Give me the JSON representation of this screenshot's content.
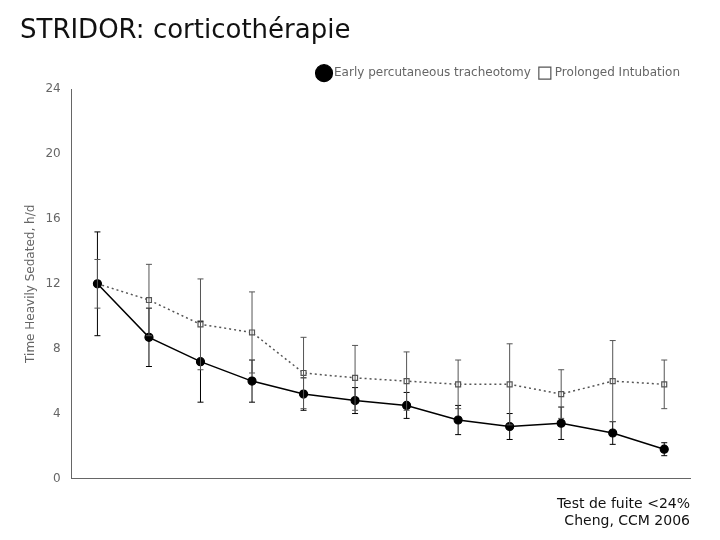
{
  "chart_data": {
    "type": "line",
    "title": "STRIDOR: corticothérapie",
    "subtitle": "Test de fuite <24%\nCheng, CCM 2006",
    "ylabel": "Time Heavily Sedated, h/d",
    "x": [
      1,
      2,
      3,
      4,
      5,
      6,
      7,
      8,
      9,
      10,
      11,
      12
    ],
    "xlim": [
      0.5,
      12.5
    ],
    "ylim": [
      0,
      24
    ],
    "yticks": [
      0,
      4,
      8,
      12,
      16,
      20,
      24
    ],
    "tick_labels": "y",
    "grid": false,
    "legend": "upper right",
    "series": [
      {
        "name": "Early percutaneous tracheotomy",
        "color": "#000000",
        "marker": "circle",
        "line_style": "solid",
        "values": [
          12.0,
          8.7,
          7.2,
          6.0,
          5.2,
          4.8,
          4.5,
          3.6,
          3.2,
          3.4,
          2.8,
          1.8
        ],
        "error_low": [
          3.2,
          1.8,
          2.5,
          1.3,
          1.0,
          0.8,
          0.8,
          0.9,
          0.8,
          1.0,
          0.7,
          0.4
        ],
        "error_high": [
          3.2,
          1.8,
          2.5,
          1.3,
          1.0,
          0.8,
          0.8,
          0.9,
          0.8,
          1.0,
          0.7,
          0.4
        ]
      },
      {
        "name": "Prolonged Intubation",
        "color": "#555555",
        "marker": "square",
        "line_style": "dotted",
        "values": [
          12.0,
          11.0,
          9.5,
          9.0,
          6.5,
          6.2,
          6.0,
          5.8,
          5.8,
          5.2,
          6.0,
          5.8
        ],
        "error_low": [
          1.5,
          2.2,
          2.8,
          2.5,
          2.2,
          2.0,
          1.8,
          1.5,
          2.5,
          1.5,
          2.5,
          1.5
        ],
        "error_high": [
          1.5,
          2.2,
          2.8,
          2.5,
          2.2,
          2.0,
          1.8,
          1.5,
          2.5,
          1.5,
          2.5,
          1.5
        ]
      }
    ]
  }
}
